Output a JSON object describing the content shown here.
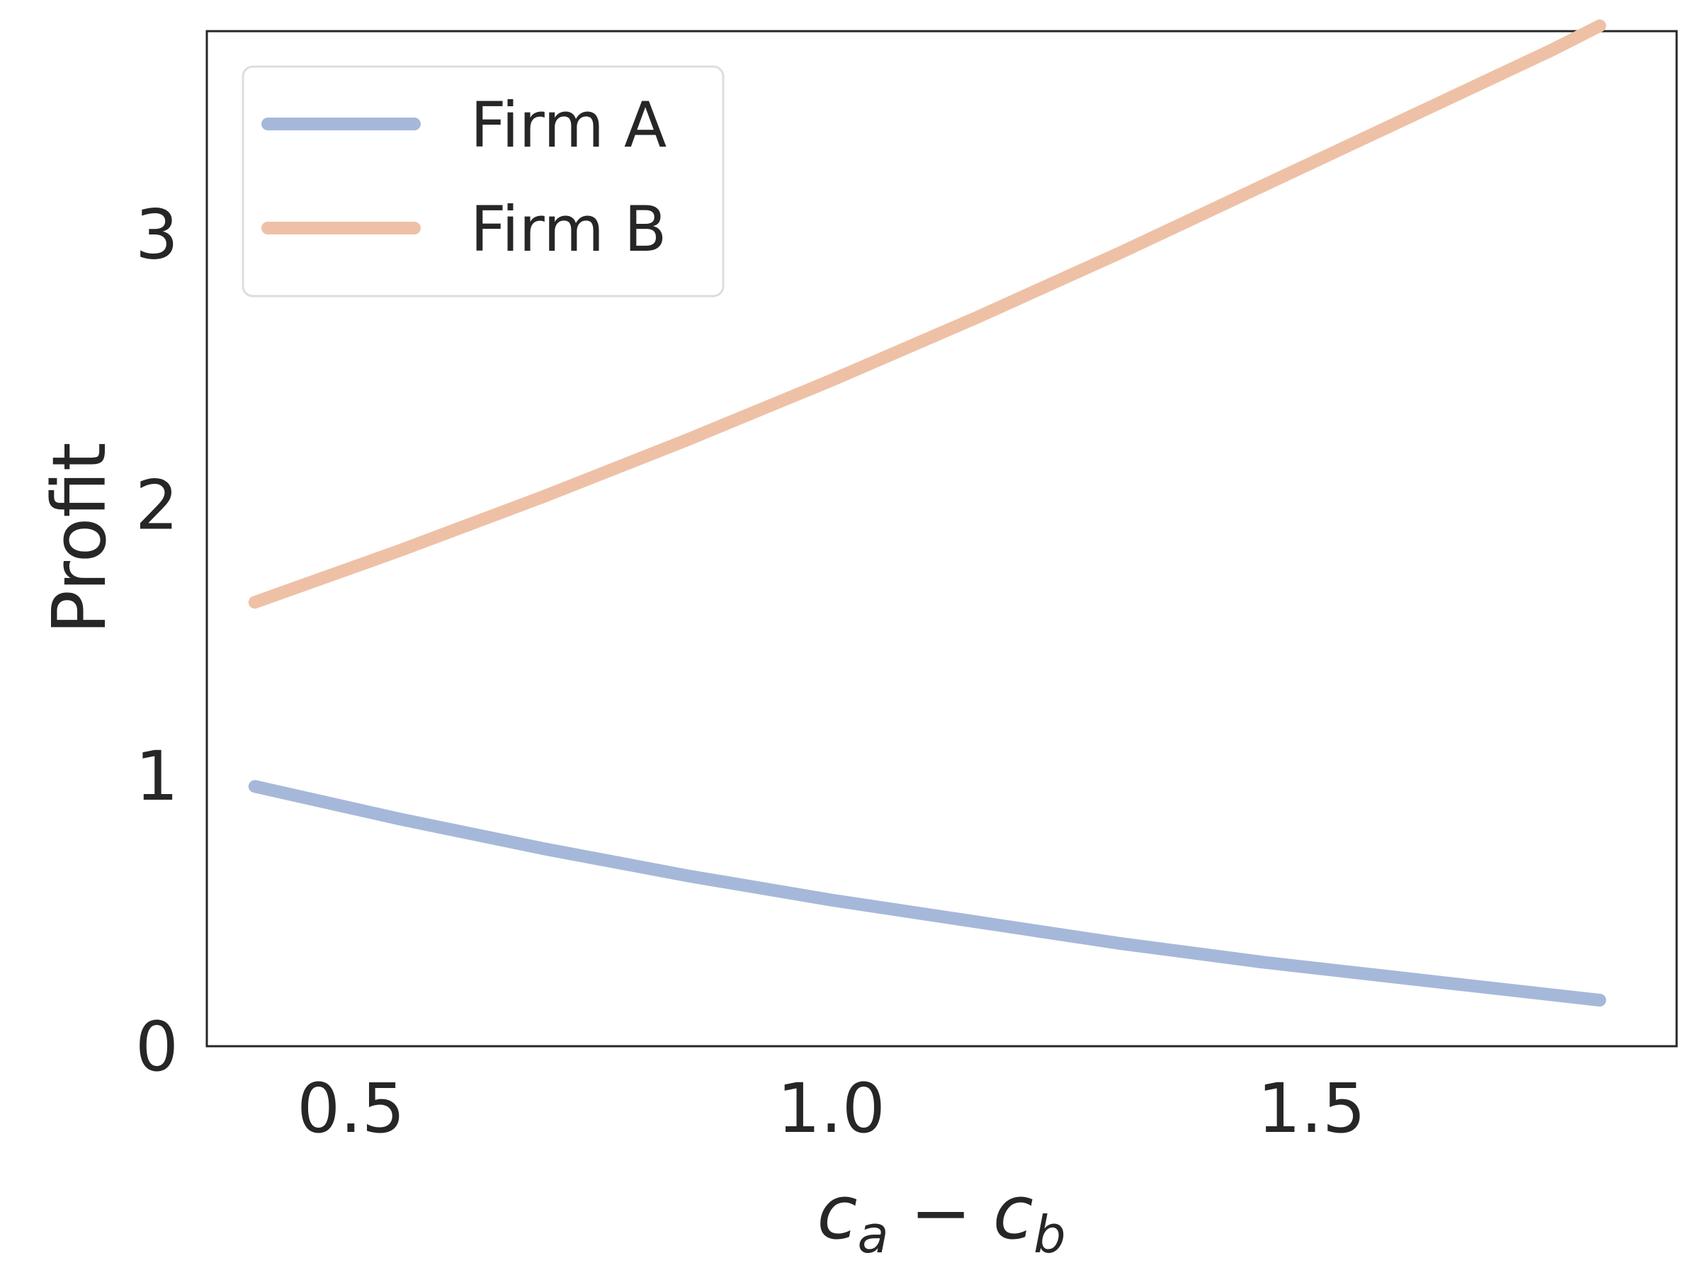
{
  "chart_data": {
    "type": "line",
    "title": "",
    "xlabel_parts": {
      "left_base": "c",
      "left_sub": "a",
      "operator": "−",
      "right_base": "c",
      "right_sub": "b"
    },
    "ylabel": "Profit",
    "xlim": [
      0.35,
      1.88
    ],
    "ylim": [
      0,
      3.75
    ],
    "xticks": [
      0.5,
      1.0,
      1.5
    ],
    "xtick_labels": [
      "0.5",
      "1.0",
      "1.5"
    ],
    "yticks": [
      0,
      1,
      2,
      3
    ],
    "ytick_labels": [
      "0",
      "1",
      "2",
      "3"
    ],
    "grid": false,
    "legend_position": "top-left",
    "x": [
      0.4,
      0.55,
      0.7,
      0.85,
      1.0,
      1.15,
      1.3,
      1.45,
      1.6,
      1.75,
      1.8
    ],
    "series": [
      {
        "name": "Firm A",
        "color": "#a6b8d9",
        "values": [
          0.96,
          0.84,
          0.73,
          0.63,
          0.54,
          0.46,
          0.38,
          0.31,
          0.25,
          0.19,
          0.17
        ]
      },
      {
        "name": "Firm B",
        "color": "#eec1a6",
        "values": [
          1.64,
          1.83,
          2.03,
          2.24,
          2.46,
          2.69,
          2.93,
          3.18,
          3.43,
          3.68,
          3.77
        ]
      }
    ]
  }
}
